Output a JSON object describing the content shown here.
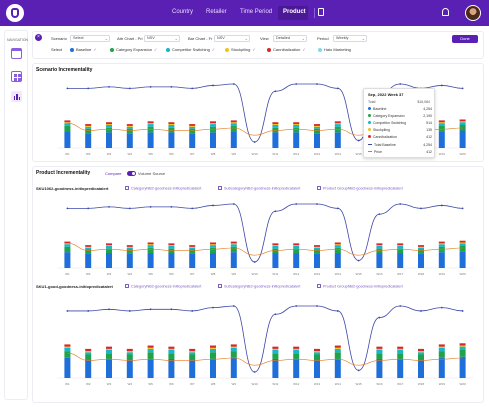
{
  "nav": {
    "items": [
      "Country",
      "Retailer",
      "Time Period",
      "Product"
    ],
    "active": "Product"
  },
  "filters": {
    "scenario_label": "Scenario",
    "scenario_value": "Select",
    "attr_chart_label": "Attr Chart - Pri",
    "attr_chart_value": "NSV",
    "bar_chart_label": "Bar Chart - Fr",
    "bar_chart_value": "NSV",
    "view_label": "View",
    "view_value": "Detailed",
    "period_label": "Period",
    "period_value": "Weekly",
    "done_label": "Done",
    "select_label": "Select",
    "legend": [
      {
        "label": "Baseline",
        "color": "#1e6fd9"
      },
      {
        "label": "Category Expansion",
        "color": "#1fa34a"
      },
      {
        "label": "Competitor Switching",
        "color": "#18b6c9"
      },
      {
        "label": "Stockpiling",
        "color": "#f2c21b"
      },
      {
        "label": "Cannibalization",
        "color": "#d62a2a"
      },
      {
        "label": "Halo Marketing",
        "color": "#7ddce8"
      }
    ]
  },
  "sidebar": {
    "label": "NAVIGATION"
  },
  "scenario": {
    "title": "Scenario Incrementality",
    "tooltip": {
      "title": "Sep, 2022 Week 37",
      "subtitle": "Total",
      "subtitle_value": "$16,084",
      "rows": [
        {
          "label": "Baseline",
          "value": "4,254",
          "color": "#1e6fd9"
        },
        {
          "label": "Category Expansion",
          "value": "2,190",
          "color": "#1fa34a"
        },
        {
          "label": "Competitor Switching",
          "value": "514",
          "color": "#18b6c9"
        },
        {
          "label": "Stockpiling",
          "value": "135",
          "color": "#f2c21b"
        },
        {
          "label": "Cannibalization",
          "value": "412",
          "color": "#d62a2a"
        },
        {
          "label": "Total Baseline",
          "value": "4,254",
          "color": "#3b47a8"
        },
        {
          "label": "Price",
          "value": "412",
          "color": "#e3791c"
        }
      ]
    }
  },
  "product": {
    "title": "Product Incrementality",
    "toggle_label": "Compare",
    "toggle_label2": "Volume Source",
    "groups": [
      {
        "title": "SKU1062-goodness-initiopredicatalert",
        "crumbs": [
          "CategoryNB2-goodness-initiopredicatalert",
          "SubcategoryNB2-goodness-initiopredicatalert",
          "Product GroupNB2-goodness-initiopredicatalert"
        ]
      },
      {
        "title": "SKU1-good-goodness-initiopredicatalert",
        "crumbs": [
          "CategoryNB2-goodness-initiopredicatalert",
          "SubcategoryNB2-goodness-initiopredicatalert",
          "Product GroupNB2-goodness-initiopredicatalert"
        ]
      }
    ]
  },
  "chart_data": [
    {
      "type": "bar",
      "title": "Scenario Incrementality",
      "categories": [
        "W1",
        "W2",
        "W3",
        "W4",
        "W5",
        "W6",
        "W7",
        "W8",
        "W9",
        "W10",
        "W11",
        "W12",
        "W13",
        "W14",
        "W15",
        "W16",
        "W17",
        "W18",
        "W19",
        "W20"
      ],
      "series": [
        {
          "name": "Baseline",
          "values": [
            18,
            16,
            17,
            16,
            17,
            17,
            16,
            17,
            18,
            0,
            17,
            17,
            16,
            17,
            0,
            17,
            17,
            16,
            18,
            19
          ]
        },
        {
          "name": "Category Expansion",
          "values": [
            6,
            5,
            5,
            5,
            6,
            5,
            5,
            6,
            6,
            0,
            5,
            5,
            5,
            6,
            0,
            5,
            5,
            5,
            6,
            6
          ]
        },
        {
          "name": "Competitor Switching",
          "values": [
            3,
            2,
            3,
            2,
            3,
            3,
            2,
            3,
            3,
            0,
            3,
            3,
            2,
            3,
            0,
            3,
            3,
            2,
            3,
            3
          ]
        },
        {
          "name": "Stockpiling",
          "values": [
            1,
            1,
            1,
            1,
            1,
            1,
            1,
            1,
            1,
            0,
            1,
            1,
            1,
            1,
            0,
            1,
            1,
            1,
            1,
            1
          ]
        },
        {
          "name": "Cannibalization",
          "values": [
            2,
            2,
            2,
            2,
            2,
            2,
            2,
            2,
            2,
            0,
            2,
            2,
            2,
            2,
            0,
            2,
            2,
            2,
            2,
            2
          ]
        }
      ],
      "line_total": [
        42,
        42,
        43,
        42,
        43,
        43,
        42,
        44,
        45,
        5,
        40,
        45,
        45,
        42,
        6,
        38,
        45,
        42,
        44,
        42
      ],
      "line_price": [
        18,
        12,
        13,
        12,
        13,
        12,
        12,
        13,
        14,
        8,
        12,
        13,
        12,
        13,
        8,
        12,
        13,
        12,
        13,
        14
      ]
    }
  ]
}
